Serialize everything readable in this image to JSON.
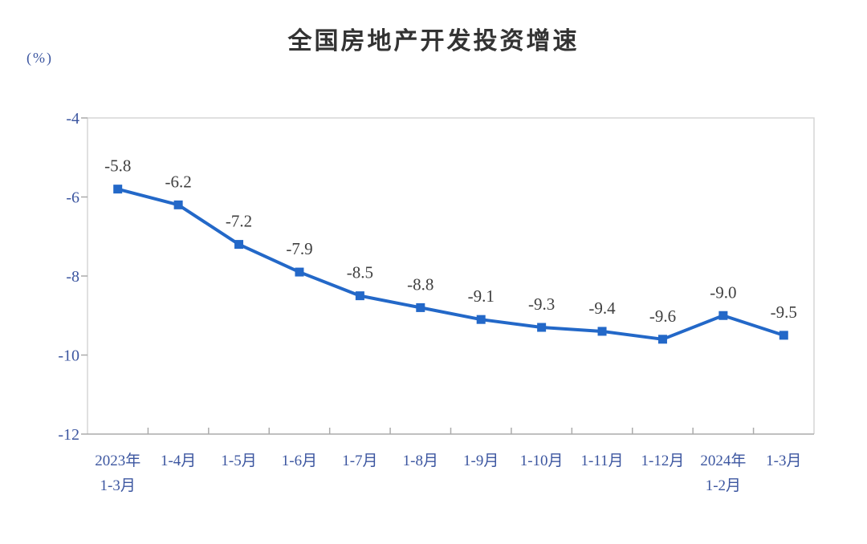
{
  "page": {
    "background": "#ffffff"
  },
  "chart_data": {
    "type": "line",
    "title": "全国房地产开发投资增速",
    "unit_label": "(%)",
    "categories": [
      "2023年\n1-3月",
      "1-4月",
      "1-5月",
      "1-6月",
      "1-7月",
      "1-8月",
      "1-9月",
      "1-10月",
      "1-11月",
      "1-12月",
      "2024年\n1-2月",
      "1-3月"
    ],
    "values": [
      -5.8,
      -6.2,
      -7.2,
      -7.9,
      -8.5,
      -8.8,
      -9.1,
      -9.3,
      -9.4,
      -9.6,
      -9.0,
      -9.5
    ],
    "data_labels": [
      "-5.8",
      "-6.2",
      "-7.2",
      "-7.9",
      "-8.5",
      "-8.8",
      "-9.1",
      "-9.3",
      "-9.4",
      "-9.6",
      "-9.0",
      "-9.5"
    ],
    "xlabel": "",
    "ylabel": "(%)",
    "ylim": [
      -12,
      -4
    ],
    "yticks": [
      -4,
      -6,
      -8,
      -10,
      -12
    ],
    "ytick_labels": [
      "-4",
      "-6",
      "-8",
      "-10",
      "-12"
    ],
    "grid": false,
    "legend": "none",
    "marker": "square",
    "colors": {
      "line": "#2368c8",
      "marker": "#2368c8",
      "data_label": "#3f3f3f",
      "axis_label": "#3c56a0",
      "plot_border": "#d6d6d6",
      "axis_line": "#ababab",
      "title": "#333333"
    }
  }
}
